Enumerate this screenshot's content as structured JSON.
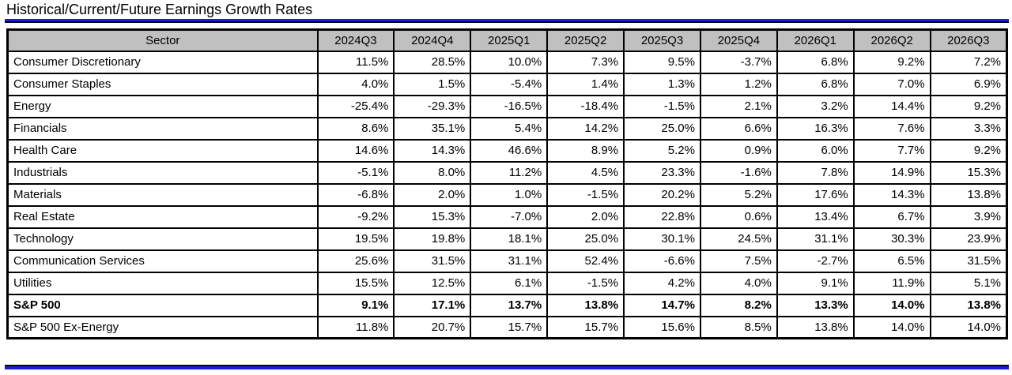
{
  "page": {
    "title": "Historical/Current/Future Earnings Growth Rates"
  },
  "colors": {
    "accent_blue": "#1b1be0",
    "header_bg": "#c0c0c0",
    "border": "#000000"
  },
  "chart_data": {
    "type": "table",
    "title": "Historical/Current/Future Earnings Growth Rates",
    "sector_header": "Sector",
    "columns": [
      "2024Q3",
      "2024Q4",
      "2025Q1",
      "2025Q2",
      "2025Q3",
      "2025Q4",
      "2026Q1",
      "2026Q2",
      "2026Q3"
    ],
    "rows": [
      {
        "sector": "Consumer Discretionary",
        "bold": false,
        "values": [
          "11.5%",
          "28.5%",
          "10.0%",
          "7.3%",
          "9.5%",
          "-3.7%",
          "6.8%",
          "9.2%",
          "7.2%"
        ]
      },
      {
        "sector": "Consumer Staples",
        "bold": false,
        "values": [
          "4.0%",
          "1.5%",
          "-5.4%",
          "1.4%",
          "1.3%",
          "1.2%",
          "6.8%",
          "7.0%",
          "6.9%"
        ]
      },
      {
        "sector": "Energy",
        "bold": false,
        "values": [
          "-25.4%",
          "-29.3%",
          "-16.5%",
          "-18.4%",
          "-1.5%",
          "2.1%",
          "3.2%",
          "14.4%",
          "9.2%"
        ]
      },
      {
        "sector": "Financials",
        "bold": false,
        "values": [
          "8.6%",
          "35.1%",
          "5.4%",
          "14.2%",
          "25.0%",
          "6.6%",
          "16.3%",
          "7.6%",
          "3.3%"
        ]
      },
      {
        "sector": "Health Care",
        "bold": false,
        "values": [
          "14.6%",
          "14.3%",
          "46.6%",
          "8.9%",
          "5.2%",
          "0.9%",
          "6.0%",
          "7.7%",
          "9.2%"
        ]
      },
      {
        "sector": "Industrials",
        "bold": false,
        "values": [
          "-5.1%",
          "8.0%",
          "11.2%",
          "4.5%",
          "23.3%",
          "-1.6%",
          "7.8%",
          "14.9%",
          "15.3%"
        ]
      },
      {
        "sector": "Materials",
        "bold": false,
        "values": [
          "-6.8%",
          "2.0%",
          "1.0%",
          "-1.5%",
          "20.2%",
          "5.2%",
          "17.6%",
          "14.3%",
          "13.8%"
        ]
      },
      {
        "sector": "Real Estate",
        "bold": false,
        "values": [
          "-9.2%",
          "15.3%",
          "-7.0%",
          "2.0%",
          "22.8%",
          "0.6%",
          "13.4%",
          "6.7%",
          "3.9%"
        ]
      },
      {
        "sector": "Technology",
        "bold": false,
        "values": [
          "19.5%",
          "19.8%",
          "18.1%",
          "25.0%",
          "30.1%",
          "24.5%",
          "31.1%",
          "30.3%",
          "23.9%"
        ]
      },
      {
        "sector": "Communication Services",
        "bold": false,
        "values": [
          "25.6%",
          "31.5%",
          "31.1%",
          "52.4%",
          "-6.6%",
          "7.5%",
          "-2.7%",
          "6.5%",
          "31.5%"
        ]
      },
      {
        "sector": "Utilities",
        "bold": false,
        "values": [
          "15.5%",
          "12.5%",
          "6.1%",
          "-1.5%",
          "4.2%",
          "4.0%",
          "9.1%",
          "11.9%",
          "5.1%"
        ]
      },
      {
        "sector": "S&P 500",
        "bold": true,
        "values": [
          "9.1%",
          "17.1%",
          "13.7%",
          "13.8%",
          "14.7%",
          "8.2%",
          "13.3%",
          "14.0%",
          "13.8%"
        ]
      },
      {
        "sector": "S&P 500 Ex-Energy",
        "bold": false,
        "values": [
          "11.8%",
          "20.7%",
          "15.7%",
          "15.7%",
          "15.6%",
          "8.5%",
          "13.8%",
          "14.0%",
          "14.0%"
        ]
      }
    ]
  }
}
